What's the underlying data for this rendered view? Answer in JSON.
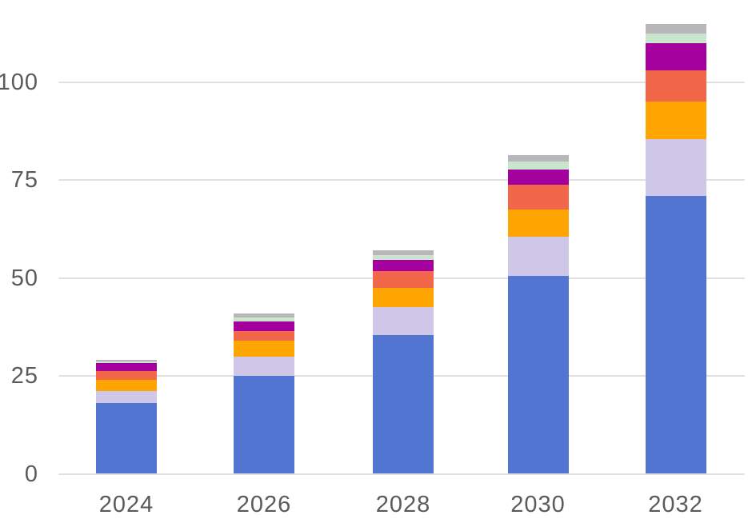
{
  "chart_data": {
    "type": "bar",
    "stacked": true,
    "title": "",
    "xlabel": "",
    "ylabel": "",
    "categories": [
      "2024",
      "2026",
      "2028",
      "2030",
      "2032"
    ],
    "series": [
      {
        "name": "blue",
        "color": "#5275D1",
        "values": [
          18,
          25,
          35.5,
          50.5,
          71
        ]
      },
      {
        "name": "lavender",
        "color": "#CFC7E8",
        "values": [
          3.2,
          5,
          7,
          10,
          14.5
        ]
      },
      {
        "name": "amber",
        "color": "#FFA502",
        "values": [
          2.8,
          4,
          5,
          7,
          9.5
        ]
      },
      {
        "name": "coral",
        "color": "#F26649",
        "values": [
          2.2,
          2.5,
          4.2,
          6.3,
          8
        ]
      },
      {
        "name": "magenta",
        "color": "#A4009E",
        "values": [
          2,
          2.5,
          3,
          4,
          7
        ]
      },
      {
        "name": "mint-green",
        "color": "#C9E5CD",
        "values": [
          0.5,
          1,
          1.1,
          2,
          2.5
        ]
      },
      {
        "name": "gray",
        "color": "#B9B6BA",
        "values": [
          0.5,
          1,
          1.4,
          1.6,
          2.5
        ]
      }
    ],
    "totals": [
      29.2,
      41,
      57.2,
      81.4,
      115
    ],
    "y_ticks": [
      0,
      25,
      50,
      75,
      100
    ],
    "ylim": [
      0,
      120
    ],
    "grid": "horizontal",
    "legend": "none"
  },
  "style": {
    "background": "#FFFFFF",
    "gridline_color": "#E0E0E0",
    "axis_label_color": "#5A5A5A"
  }
}
